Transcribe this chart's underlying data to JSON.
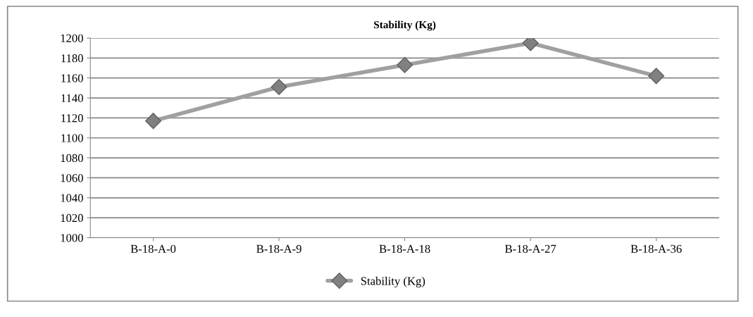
{
  "chart_data": {
    "type": "line",
    "title": "Stability (Kg)",
    "categories": [
      "B-18-A-0",
      "B-18-A-9",
      "B-18-A-18",
      "B-18-A-27",
      "B-18-A-36"
    ],
    "series": [
      {
        "name": "Stability (Kg)",
        "color": "#a0a0a0",
        "values": [
          1117,
          1151,
          1173,
          1195,
          1162
        ]
      }
    ],
    "ylim": [
      1000,
      1200
    ],
    "yticks": [
      1000,
      1020,
      1040,
      1060,
      1080,
      1100,
      1120,
      1140,
      1160,
      1180,
      1200
    ],
    "grid": "y",
    "legend": "bottom",
    "marker": "diamond",
    "line_style": "solid"
  }
}
